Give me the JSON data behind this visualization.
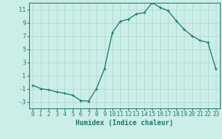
{
  "xlabel": "Humidex (Indice chaleur)",
  "x_values": [
    0,
    1,
    2,
    3,
    4,
    5,
    6,
    7,
    8,
    9,
    10,
    11,
    12,
    13,
    14,
    15,
    16,
    17,
    18,
    19,
    20,
    21,
    22,
    23
  ],
  "y_values": [
    -0.5,
    -1.0,
    -1.2,
    -1.5,
    -1.7,
    -2.0,
    -2.8,
    -2.9,
    -1.0,
    2.0,
    7.5,
    9.2,
    9.5,
    10.3,
    10.5,
    12.0,
    11.3,
    10.8,
    9.3,
    8.0,
    7.0,
    6.3,
    6.0,
    2.0
  ],
  "line_color": "#1a7a6a",
  "marker": "+",
  "bg_color": "#cceee8",
  "grid_color": "#aad4cc",
  "tick_color": "#1a7a6a",
  "ylim": [
    -4,
    12
  ],
  "yticks": [
    -3,
    -1,
    1,
    3,
    5,
    7,
    9,
    11
  ],
  "xlim": [
    -0.5,
    23.5
  ],
  "xticks": [
    0,
    1,
    2,
    3,
    4,
    5,
    6,
    7,
    8,
    9,
    10,
    11,
    12,
    13,
    14,
    15,
    16,
    17,
    18,
    19,
    20,
    21,
    22,
    23
  ],
  "xlabel_fontsize": 7,
  "tick_fontsize": 6,
  "marker_size": 3,
  "line_width": 1.0
}
